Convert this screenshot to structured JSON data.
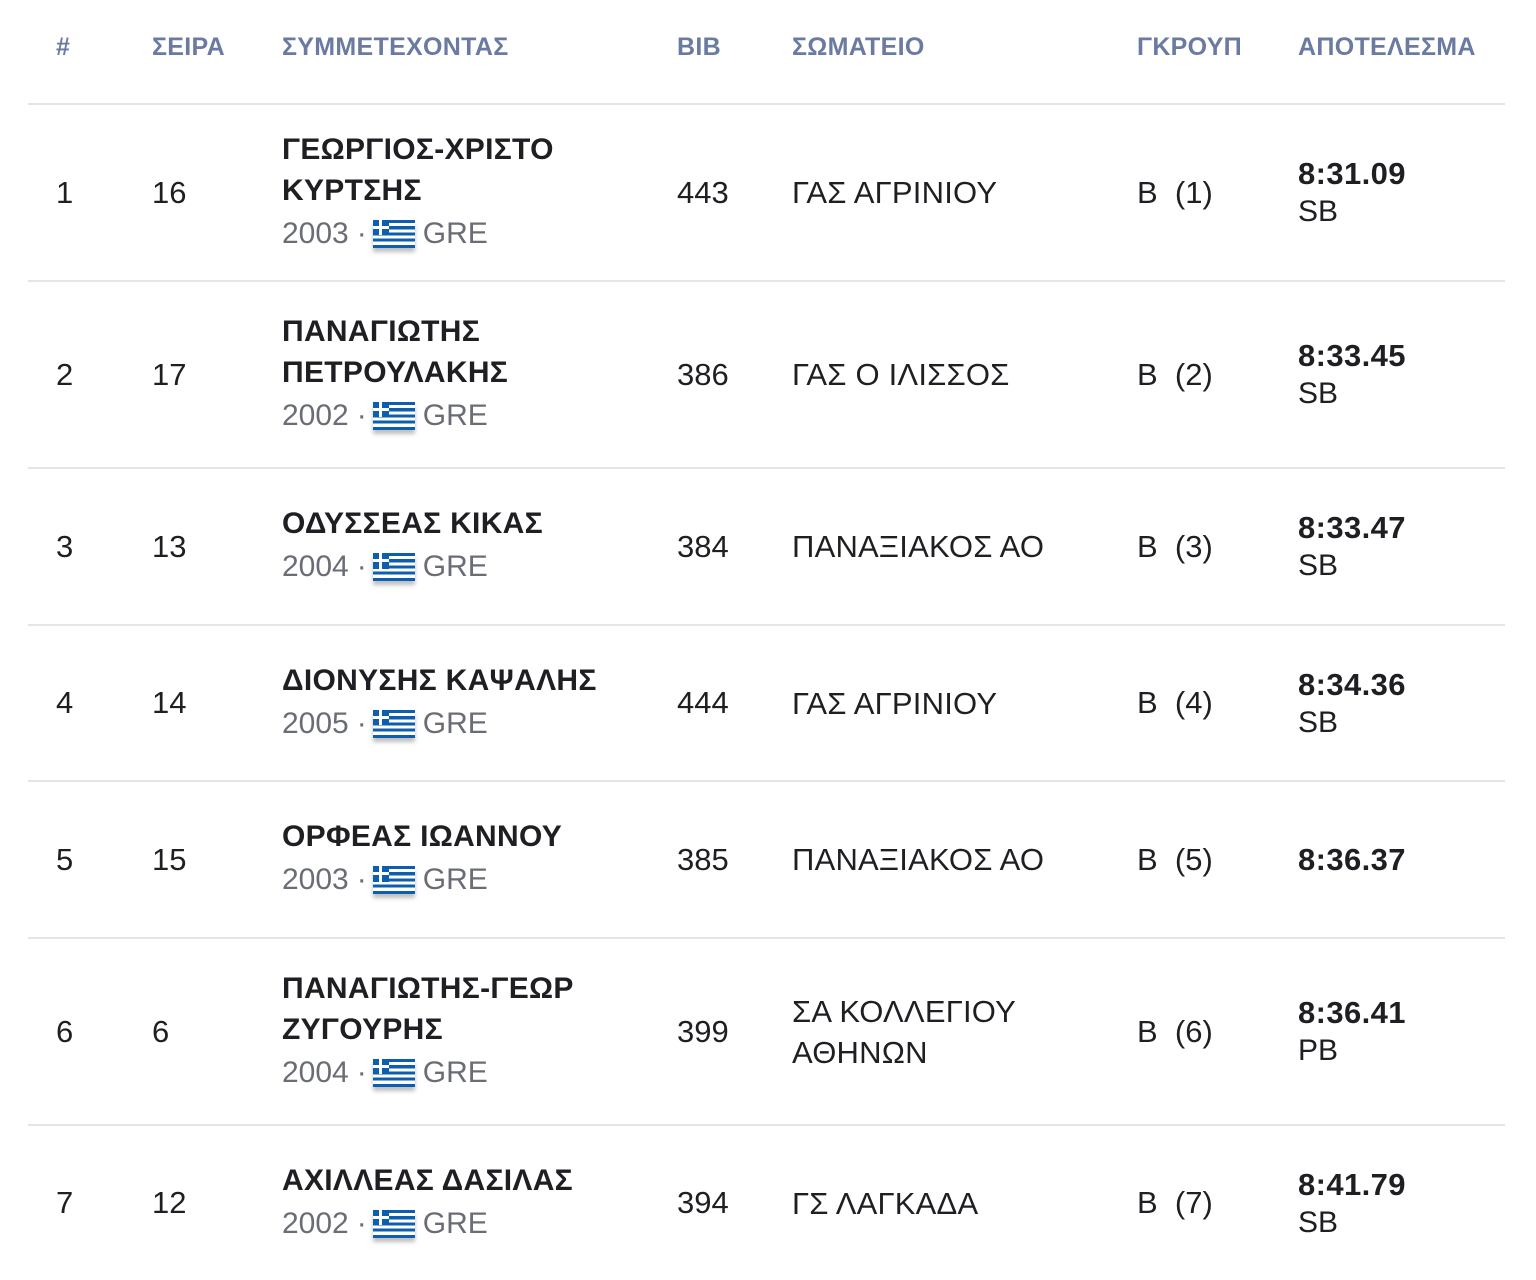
{
  "headers": {
    "rank": "#",
    "lane": "ΣΕΙΡΑ",
    "athlete": "ΣΥΜΜΕΤΕΧΟΝΤΑΣ",
    "bib": "BIB",
    "club": "ΣΩΜΑΤΕΙΟ",
    "group": "ΓΚΡΟΥΠ",
    "result": "ΑΠΟΤΕΛΕΣΜΑ"
  },
  "rows": [
    {
      "rank": "1",
      "lane": "16",
      "name": "ΓΕΩΡΓΙΟΣ-ΧΡΙΣΤΟ ΚΥΡΤΣΗΣ",
      "year": "2003",
      "country": "GRE",
      "bib": "443",
      "club": "ΓΑΣ ΑΓΡΙΝΙΟΥ",
      "group": "Β  (1)",
      "time": "8:31.09",
      "note": "SB"
    },
    {
      "rank": "2",
      "lane": "17",
      "name": "ΠΑΝΑΓΙΩΤΗΣ ΠΕΤΡΟΥΛΑΚΗΣ",
      "year": "2002",
      "country": "GRE",
      "bib": "386",
      "club": "ΓΑΣ Ο ΙΛΙΣΣΟΣ",
      "group": "Β  (2)",
      "time": "8:33.45",
      "note": "SB"
    },
    {
      "rank": "3",
      "lane": "13",
      "name": "ΟΔΥΣΣΕΑΣ ΚΙΚΑΣ",
      "year": "2004",
      "country": "GRE",
      "bib": "384",
      "club": "ΠΑΝΑΞΙΑΚΟΣ ΑΟ",
      "group": "Β  (3)",
      "time": "8:33.47",
      "note": "SB"
    },
    {
      "rank": "4",
      "lane": "14",
      "name": "ΔΙΟΝΥΣΗΣ ΚΑΨΑΛΗΣ",
      "year": "2005",
      "country": "GRE",
      "bib": "444",
      "club": "ΓΑΣ ΑΓΡΙΝΙΟΥ",
      "group": "Β  (4)",
      "time": "8:34.36",
      "note": "SB"
    },
    {
      "rank": "5",
      "lane": "15",
      "name": "ΟΡΦΕΑΣ ΙΩΑΝΝΟΥ",
      "year": "2003",
      "country": "GRE",
      "bib": "385",
      "club": "ΠΑΝΑΞΙΑΚΟΣ ΑΟ",
      "group": "Β  (5)",
      "time": "8:36.37",
      "note": ""
    },
    {
      "rank": "6",
      "lane": "6",
      "name": "ΠΑΝΑΓΙΩΤΗΣ-ΓΕΩΡ ΖΥΓΟΥΡΗΣ",
      "year": "2004",
      "country": "GRE",
      "bib": "399",
      "club": "ΣΑ ΚΟΛΛΕΓΙΟΥ ΑΘΗΝΩΝ",
      "group": "Β  (6)",
      "time": "8:36.41",
      "note": "PB"
    },
    {
      "rank": "7",
      "lane": "12",
      "name": "ΑΧΙΛΛΕΑΣ ΔΑΣΙΛΑΣ",
      "year": "2002",
      "country": "GRE",
      "bib": "394",
      "club": "ΓΣ ΛΑΓΚΑΔΑ",
      "group": "Β  (7)",
      "time": "8:41.79",
      "note": "SB"
    }
  ]
}
